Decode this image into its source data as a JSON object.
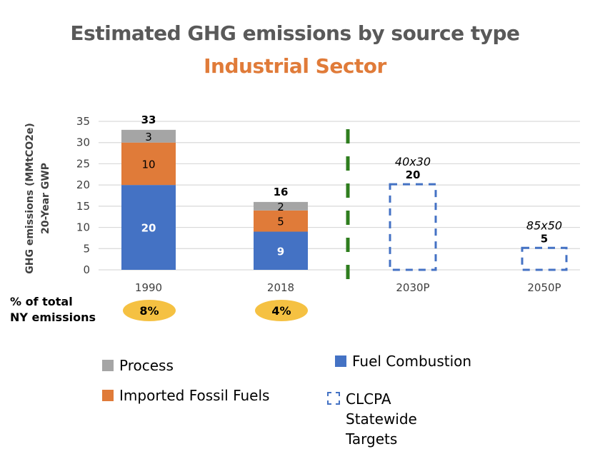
{
  "chart_data": {
    "type": "bar",
    "stacked": true,
    "title": "Estimated GHG emissions by source type",
    "subtitle": "Industrial Sector",
    "xlabel": "",
    "ylabel": "GHG emissions (MMtCO2e)",
    "ylabel_line2": "20-Year GWP",
    "ylim": [
      0,
      35
    ],
    "yticks": [
      0,
      5,
      10,
      15,
      20,
      25,
      30,
      35
    ],
    "grid": true,
    "categories": [
      "1990",
      "2018",
      "2030P",
      "2050P"
    ],
    "series": [
      {
        "name": "Fuel Combustion",
        "color": "#4472c4",
        "values": [
          20,
          9,
          null,
          null
        ],
        "label_color": "#ffffff"
      },
      {
        "name": "Imported Fossil Fuels",
        "color": "#e07b39",
        "values": [
          10,
          5,
          null,
          null
        ],
        "label_color": "#000000"
      },
      {
        "name": "Process",
        "color": "#a5a5a5",
        "values": [
          3,
          2,
          null,
          null
        ],
        "label_color": "#000000"
      }
    ],
    "totals": [
      33,
      16,
      null,
      null
    ],
    "targets": {
      "name": "CLCPA Statewide Targets",
      "color": "#4472c4",
      "values": [
        null,
        null,
        20,
        5
      ],
      "annotations": [
        null,
        null,
        "40x30",
        "85x50"
      ]
    },
    "divider": {
      "between": [
        "2018",
        "2030P"
      ],
      "color": "#2e7d1e",
      "style": "dashed"
    },
    "share_of_total": {
      "label_line1": "% of total",
      "label_line2": "NY emissions",
      "values": [
        "8%",
        "4%"
      ],
      "badge_color": "#f5c142"
    },
    "legend": {
      "placement": "bottom",
      "items": [
        {
          "label": "Process",
          "color": "#a5a5a5",
          "kind": "solid"
        },
        {
          "label": "Fuel Combustion",
          "color": "#4472c4",
          "kind": "solid"
        },
        {
          "label": "Imported Fossil Fuels",
          "color": "#e07b39",
          "kind": "solid"
        },
        {
          "label": "CLCPA Statewide Targets",
          "color": "#4472c4",
          "kind": "dashed"
        }
      ]
    }
  }
}
